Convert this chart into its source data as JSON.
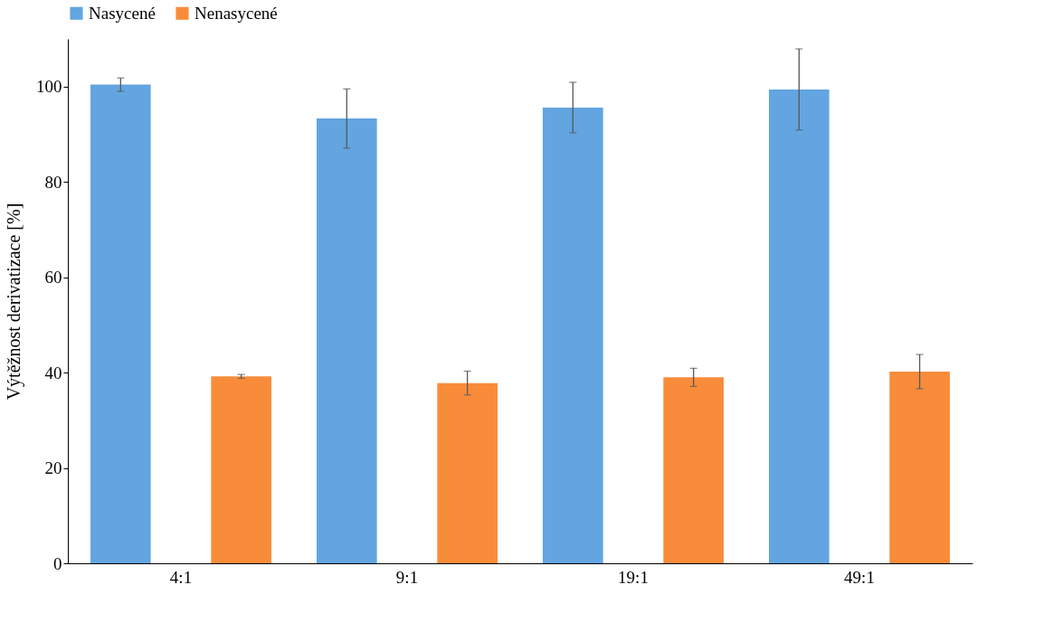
{
  "chart_data": {
    "type": "bar",
    "ylabel": "Výtěžnost derivatizace [%]",
    "categories": [
      "4:1",
      "9:1",
      "19:1",
      "49:1"
    ],
    "series": [
      {
        "name": "Nasycené",
        "color": "#62a5e0",
        "values": [
          100.4,
          93.3,
          95.6,
          99.4
        ],
        "errors": [
          1.4,
          6.2,
          5.3,
          8.5
        ]
      },
      {
        "name": "Nenasycené",
        "color": "#f98c3a",
        "values": [
          39.2,
          37.8,
          39.0,
          40.2
        ],
        "errors": [
          0.4,
          2.5,
          1.9,
          3.6
        ]
      }
    ],
    "ylim": [
      0,
      110
    ],
    "yticks": [
      0,
      20,
      40,
      60,
      80,
      100
    ],
    "grid": false,
    "legend": "top"
  }
}
